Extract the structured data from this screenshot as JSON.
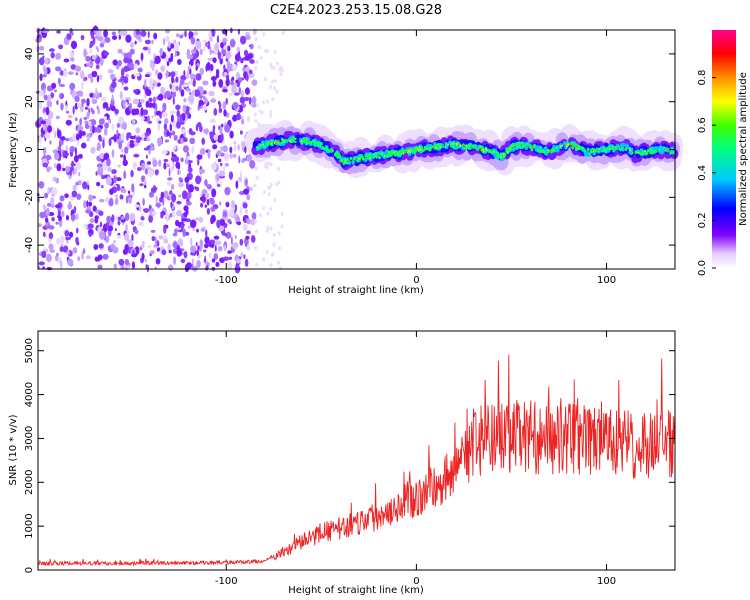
{
  "figure_title": "C2E4.2023.253.15.08.G28",
  "chart_data": [
    {
      "type": "heatmap",
      "xlabel": "Height of straight line (km)",
      "ylabel": "Frequency (Hz)",
      "xlim": [
        -199,
        136
      ],
      "ylim": [
        -50,
        50
      ],
      "x_ticks": [
        -100,
        0,
        100
      ],
      "y_ticks": [
        40,
        20,
        0,
        -20,
        -40
      ],
      "x_tick_labels": [
        "-100",
        "0",
        "100"
      ],
      "y_tick_labels": [
        "40",
        "20",
        "0",
        "-20",
        "-40"
      ],
      "grid": false,
      "noise_region_x": [
        -199,
        -85
      ],
      "signal_track": {
        "x": [
          -85,
          -75,
          -65,
          -55,
          -48,
          -42,
          -38,
          -32,
          -25,
          -15,
          -5,
          0,
          10,
          20,
          30,
          40,
          45,
          50,
          55,
          60,
          70,
          75,
          80,
          85,
          90,
          100,
          110,
          115,
          120,
          130,
          136
        ],
        "y": [
          1,
          3,
          4,
          3,
          1,
          -2,
          -5,
          -4,
          -3,
          -2,
          -1,
          0,
          1,
          2,
          1,
          -1,
          -3,
          1,
          2,
          1,
          -1,
          1,
          2,
          1,
          -1,
          0,
          1,
          -2,
          -1,
          0,
          -1
        ]
      },
      "colorbar": {
        "label": "Normalized spectral amplitude",
        "range": [
          0,
          1
        ],
        "ticks": [
          "0.0",
          "0.2",
          "0.4",
          "0.6",
          "0.8"
        ],
        "tick_values": [
          0,
          0.2,
          0.4,
          0.6,
          0.8
        ]
      }
    },
    {
      "type": "line",
      "xlabel": "Height of straight line (km)",
      "ylabel": "SNR (10 * v/v)",
      "xlim": [
        -199,
        136
      ],
      "ylim": [
        0,
        5450
      ],
      "x_ticks": [
        -100,
        0,
        100
      ],
      "y_ticks": [
        0,
        1000,
        2000,
        3000,
        4000,
        5000
      ],
      "x_tick_labels": [
        "-100",
        "0",
        "100"
      ],
      "y_tick_labels": [
        "0",
        "1000",
        "2000",
        "3000",
        "4000",
        "5000"
      ],
      "grid": false,
      "color": "#ee2222",
      "series": [
        {
          "x": [
            -199,
            -180,
            -160,
            -140,
            -120,
            -100,
            -80,
            -70,
            -60,
            -50,
            -40,
            -30,
            -20,
            -10,
            0,
            10,
            20,
            25,
            30,
            40,
            50,
            60,
            70,
            80,
            90,
            100,
            110,
            120,
            130,
            136
          ],
          "y": [
            150,
            150,
            150,
            160,
            160,
            170,
            200,
            400,
            650,
            850,
            950,
            1100,
            1250,
            1500,
            1650,
            1900,
            2250,
            2600,
            2900,
            3000,
            3050,
            3050,
            2950,
            3000,
            2950,
            2900,
            2850,
            2850,
            2900,
            2850
          ]
        }
      ]
    }
  ]
}
